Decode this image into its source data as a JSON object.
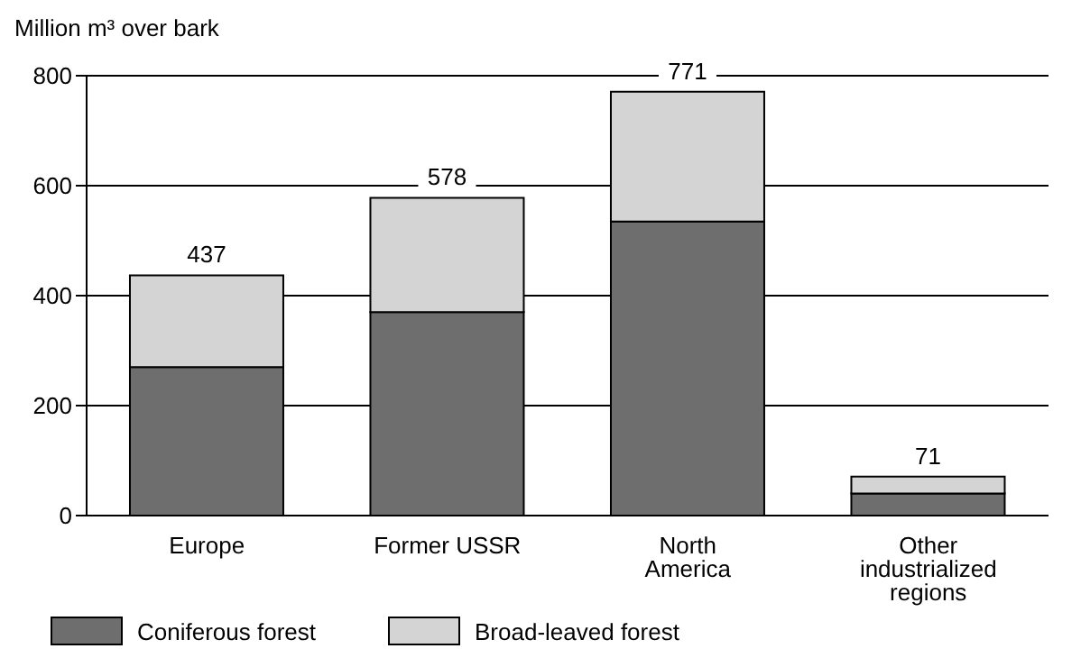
{
  "chart_data": {
    "type": "bar",
    "ylabel": "Million m³ over bark",
    "categories": [
      "Europe",
      "Former USSR",
      "North America",
      "Other industrialized regions"
    ],
    "stacked": true,
    "series": [
      {
        "name": "Coniferous forest",
        "color": "#6e6e6e",
        "values": [
          270,
          370,
          535,
          40
        ]
      },
      {
        "name": "Broad-leaved forest",
        "color": "#d4d4d4",
        "values": [
          167,
          208,
          236,
          31
        ]
      }
    ],
    "totals": [
      "437",
      "578",
      "771",
      "71"
    ],
    "ylim": [
      0,
      800
    ],
    "yticks": [
      0,
      200,
      400,
      600,
      800
    ],
    "grid": "y",
    "legend": "bottom left"
  }
}
